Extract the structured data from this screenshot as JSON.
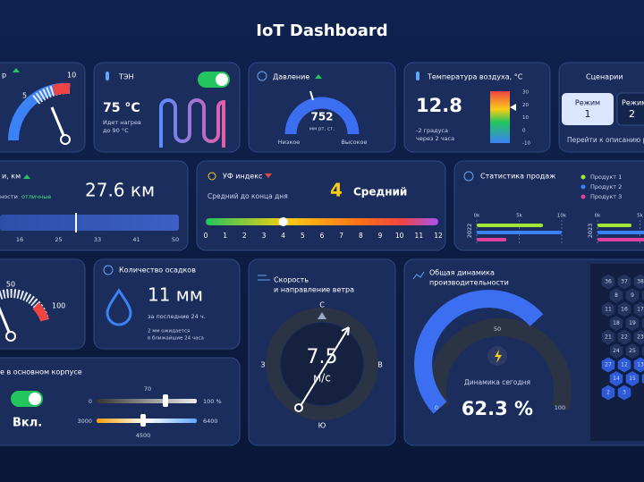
{
  "header": {
    "title": "IoT Dashboard"
  },
  "boiler": {
    "label": "р",
    "ticks": [
      "5",
      "10"
    ]
  },
  "heater": {
    "title": "ТЭН",
    "temperature": "75 °С",
    "status": [
      "Идет нагрев",
      "до 90 °С"
    ]
  },
  "pressure": {
    "title": "Давление",
    "value": "752",
    "unit": "мм рт. ст.",
    "low": "Низкое",
    "high": "Высокое"
  },
  "air_temperature": {
    "title": "Температура воздуха, °С",
    "value": "12.8",
    "forecast": [
      "-2 градуса",
      "через 2 часа"
    ],
    "scale": [
      "30",
      "20",
      "10",
      "0",
      "-10"
    ]
  },
  "scenarios": {
    "title": "Сценарии",
    "modes": [
      {
        "label": "Режим",
        "number": "1"
      },
      {
        "label": "Режим",
        "number": "2"
      }
    ],
    "link": "Перейти к описанию ре"
  },
  "distance": {
    "title": "и, км",
    "quality_prefix": "ности",
    "quality": "отличные",
    "value": "27.6 км",
    "scale": [
      "16",
      "25",
      "33",
      "41",
      "50"
    ]
  },
  "uv": {
    "title": "УФ индекс",
    "forecast": "Средний до конца дня",
    "value": 4,
    "level": "Средний",
    "scale": [
      0,
      1,
      2,
      3,
      4,
      5,
      6,
      7,
      8,
      9,
      10,
      11,
      12
    ]
  },
  "sales": {
    "title": "Статистика продаж",
    "xlim": [
      0,
      10
    ],
    "xticks": [
      {
        "value": 0,
        "label": "0k"
      },
      {
        "value": 5,
        "label": "5k"
      },
      {
        "value": 10,
        "label": "10k"
      }
    ],
    "years": [
      "2022",
      "2023"
    ],
    "series": [
      {
        "name": "Продукт 1",
        "color": "#a3e635",
        "values": [
          7.8,
          4
        ]
      },
      {
        "name": "Продукт 2",
        "color": "#3b82f6",
        "values": [
          10,
          7
        ]
      },
      {
        "name": "Продукт 3",
        "color": "#e040a0",
        "values": [
          3.5,
          6
        ]
      }
    ]
  },
  "gauge2": {
    "ticks": [
      "50",
      "100"
    ]
  },
  "precipitation": {
    "title": "Количество осадков",
    "value": "11 мм",
    "period": "за последние 24 ч.",
    "forecast": [
      "2 мм ожидается",
      "в ближайшие 24 часа"
    ]
  },
  "wind": {
    "title": [
      "Скорость",
      "и направление ветра"
    ],
    "value": "7.5",
    "unit": "м/с",
    "north": "С",
    "east": "В",
    "south": "Ю",
    "west": "З"
  },
  "performance": {
    "title": [
      "Общая динамика",
      "производительности"
    ],
    "min": "0",
    "mid": "50",
    "max": "100",
    "caption": "Динамика сегодня",
    "value": "62.3 %",
    "cells": [
      "36",
      "37",
      "38",
      "8",
      "9",
      "10",
      "11",
      "16",
      "17",
      "18",
      "19",
      "20",
      "21",
      "22",
      "23",
      "24",
      "25",
      "26",
      "27",
      "12",
      "13",
      "14",
      "15",
      "1",
      "2",
      "3"
    ]
  },
  "lighting": {
    "title": "е в основном корпусе",
    "switch": "Вкл.",
    "brightness": {
      "value": "70",
      "min": "0",
      "max": "100 %"
    },
    "color_temp": {
      "min": "3000",
      "max": "6400",
      "value": "4500"
    }
  }
}
